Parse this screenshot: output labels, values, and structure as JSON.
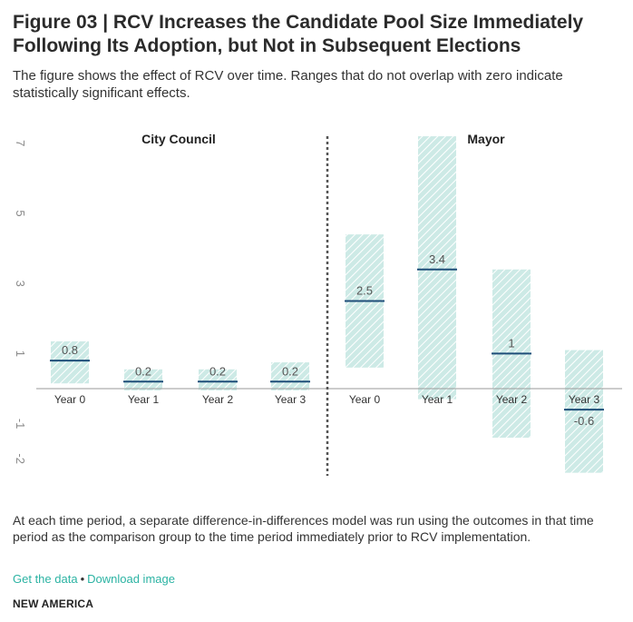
{
  "header": {
    "title": "Figure 03 | RCV Increases the Candidate Pool Size Immediately Following Its Adoption, but Not in Subsequent Elections",
    "subtitle": "The figure shows the effect of RCV over time. Ranges that do not overlap with zero indicate statistically significant effects."
  },
  "footer": {
    "note": "At each time period, a separate difference-in-differences model was run using the outcomes in that time period as the comparison group to the time period immediately prior to RCV implementation.",
    "get_data_label": "Get the data",
    "separator": "•",
    "download_label": "Download image",
    "brand": "NEW AMERICA"
  },
  "colors": {
    "range_fill": "#cdeae6",
    "range_hatch": "#ffffff",
    "estimate_line": "#1f4e79",
    "axis": "#9a9a9a",
    "divider": "#555555",
    "link": "#2bb3a3"
  },
  "chart_data": {
    "type": "range",
    "yticks": [
      7,
      5,
      3,
      1,
      -1,
      -2
    ],
    "ylim": [
      -2.5,
      7.2
    ],
    "panels": [
      {
        "name": "City Council",
        "categories": [
          "Year 0",
          "Year 1",
          "Year 2",
          "Year 3"
        ],
        "estimates": [
          0.8,
          0.2,
          0.2,
          0.2
        ],
        "labels": [
          "0.8",
          "0.2",
          "0.2",
          "0.2"
        ],
        "lower": [
          0.15,
          -0.05,
          -0.05,
          -0.05
        ],
        "upper": [
          1.35,
          0.55,
          0.55,
          0.75
        ]
      },
      {
        "name": "Mayor",
        "categories": [
          "Year 0",
          "Year 1",
          "Year 2",
          "Year 3"
        ],
        "estimates": [
          2.5,
          3.4,
          1,
          -0.6
        ],
        "labels": [
          "2.5",
          "3.4",
          "1",
          "-0.6"
        ],
        "lower": [
          0.6,
          -0.3,
          -1.4,
          -2.4
        ],
        "upper": [
          4.4,
          7.2,
          3.4,
          1.1
        ]
      }
    ]
  }
}
